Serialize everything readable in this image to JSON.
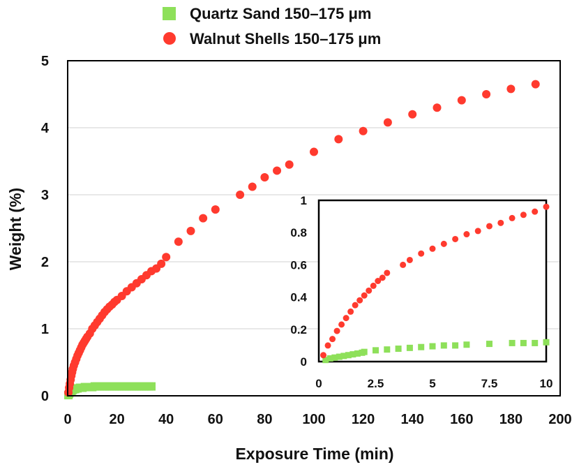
{
  "chart_data": {
    "type": "scatter",
    "xlabel": "Exposure Time (min)",
    "ylabel": "Weight (%)",
    "xlim": [
      0,
      200
    ],
    "ylim": [
      0,
      5
    ],
    "xticks": [
      "0",
      "20",
      "40",
      "60",
      "80",
      "100",
      "120",
      "140",
      "160",
      "180",
      "200"
    ],
    "yticks": [
      "0",
      "1",
      "2",
      "3",
      "4",
      "5"
    ],
    "grid": "horizontal",
    "legend_position": "top-center",
    "series": [
      {
        "name": "Quartz Sand 150–175 μm",
        "marker": "square",
        "color": "#8ee05a",
        "x": [
          0.3,
          0.6,
          0.9,
          1.2,
          1.5,
          1.8,
          2.1,
          2.5,
          3,
          3.5,
          4,
          5,
          6,
          7,
          8,
          9,
          10,
          11,
          12,
          13,
          14,
          15,
          16,
          17,
          18,
          19,
          20,
          21,
          22,
          23,
          24,
          25,
          26,
          27,
          28,
          29,
          30,
          31,
          32,
          33,
          34
        ],
        "y": [
          0.01,
          0.03,
          0.05,
          0.06,
          0.07,
          0.08,
          0.09,
          0.1,
          0.1,
          0.11,
          0.11,
          0.12,
          0.12,
          0.13,
          0.13,
          0.13,
          0.13,
          0.14,
          0.14,
          0.14,
          0.14,
          0.14,
          0.14,
          0.14,
          0.14,
          0.14,
          0.14,
          0.14,
          0.14,
          0.14,
          0.14,
          0.14,
          0.14,
          0.14,
          0.14,
          0.14,
          0.14,
          0.14,
          0.14,
          0.14,
          0.14
        ]
      },
      {
        "name": "Walnut Shells 150–175 μm",
        "marker": "circle",
        "color": "#ff3a2e",
        "x": [
          0.3,
          0.6,
          0.9,
          1.2,
          1.5,
          1.8,
          2.1,
          2.5,
          3,
          3.5,
          4,
          4.5,
          5,
          5.5,
          6,
          6.5,
          7,
          7.5,
          8,
          9,
          10,
          11,
          12,
          13,
          14,
          15,
          16,
          17,
          18,
          19,
          20,
          22,
          24,
          26,
          28,
          30,
          32,
          34,
          36,
          38,
          40,
          45,
          50,
          55,
          60,
          70,
          75,
          80,
          85,
          90,
          100,
          110,
          120,
          130,
          140,
          150,
          160,
          170,
          180,
          190
        ],
        "y": [
          0.05,
          0.12,
          0.18,
          0.24,
          0.3,
          0.35,
          0.4,
          0.45,
          0.5,
          0.55,
          0.6,
          0.64,
          0.68,
          0.72,
          0.76,
          0.79,
          0.82,
          0.85,
          0.88,
          0.93,
          1.0,
          1.05,
          1.1,
          1.15,
          1.2,
          1.25,
          1.29,
          1.33,
          1.36,
          1.4,
          1.43,
          1.49,
          1.56,
          1.62,
          1.68,
          1.74,
          1.8,
          1.86,
          1.9,
          1.97,
          2.07,
          2.3,
          2.46,
          2.65,
          2.78,
          3.0,
          3.12,
          3.26,
          3.36,
          3.45,
          3.64,
          3.83,
          3.95,
          4.08,
          4.2,
          4.3,
          4.41,
          4.5,
          4.58,
          4.65
        ]
      }
    ],
    "inset": {
      "xlim": [
        0,
        10
      ],
      "ylim": [
        0,
        1
      ],
      "xticks": [
        "0",
        "2.5",
        "5",
        "7.5",
        "10"
      ],
      "yticks": [
        "0",
        "0.2",
        "0.4",
        "0.6",
        "0.8",
        "1"
      ],
      "series": [
        {
          "marker": "square",
          "color": "#8ee05a",
          "x": [
            0.3,
            0.5,
            0.7,
            0.9,
            1.1,
            1.3,
            1.5,
            1.7,
            1.9,
            2.0,
            2.5,
            3.0,
            3.5,
            4.0,
            4.5,
            5.0,
            5.5,
            6.0,
            6.5,
            7.5,
            8.5,
            9.0,
            9.5,
            10.0
          ],
          "y": [
            0.01,
            0.02,
            0.025,
            0.03,
            0.035,
            0.04,
            0.045,
            0.05,
            0.055,
            0.06,
            0.07,
            0.075,
            0.08,
            0.085,
            0.09,
            0.095,
            0.1,
            0.1,
            0.105,
            0.11,
            0.115,
            0.115,
            0.115,
            0.12
          ]
        },
        {
          "marker": "circle",
          "color": "#ff3a2e",
          "x": [
            0.2,
            0.4,
            0.6,
            0.8,
            1.0,
            1.2,
            1.4,
            1.6,
            1.8,
            2.0,
            2.2,
            2.4,
            2.6,
            2.8,
            3.0,
            3.7,
            4.0,
            4.5,
            5.0,
            5.5,
            6.0,
            6.5,
            7.0,
            7.5,
            8.0,
            8.5,
            9.0,
            9.5,
            10.0
          ],
          "y": [
            0.04,
            0.1,
            0.14,
            0.19,
            0.23,
            0.27,
            0.31,
            0.35,
            0.38,
            0.41,
            0.44,
            0.47,
            0.5,
            0.52,
            0.55,
            0.6,
            0.63,
            0.67,
            0.7,
            0.73,
            0.76,
            0.79,
            0.81,
            0.84,
            0.86,
            0.89,
            0.91,
            0.93,
            0.96
          ]
        }
      ]
    }
  }
}
